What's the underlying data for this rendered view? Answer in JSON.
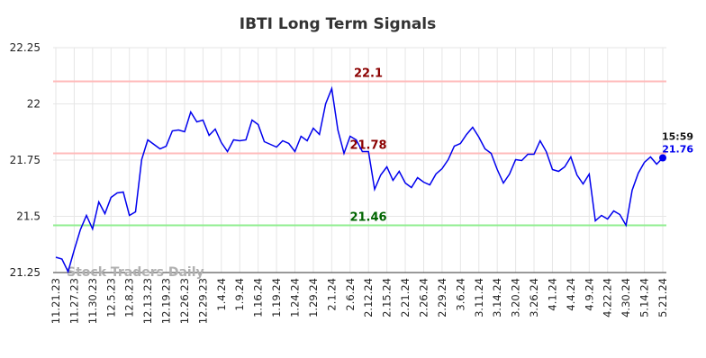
{
  "chart_data": {
    "type": "line",
    "title": "IBTI Long Term Signals",
    "watermark": "Stock Traders Daily",
    "categories": [
      "11.21.23",
      null,
      null,
      "11.27.23",
      null,
      null,
      "11.30.23",
      null,
      null,
      "12.5.23",
      null,
      null,
      "12.8.23",
      null,
      null,
      "12.13.23",
      null,
      null,
      "12.19.23",
      null,
      null,
      "12.26.23",
      null,
      null,
      "12.29.23",
      null,
      null,
      "1.4.24",
      null,
      null,
      "1.9.24",
      null,
      null,
      "1.16.24",
      null,
      null,
      "1.19.24",
      null,
      null,
      "1.24.24",
      null,
      null,
      "1.29.24",
      null,
      null,
      "2.1.24",
      null,
      null,
      "2.6.24",
      null,
      null,
      "2.12.24",
      null,
      null,
      "2.15.24",
      null,
      null,
      "2.21.24",
      null,
      null,
      "2.26.24",
      null,
      null,
      "2.29.24",
      null,
      null,
      "3.6.24",
      null,
      null,
      "3.11.24",
      null,
      null,
      "3.14.24",
      null,
      null,
      "3.20.24",
      null,
      null,
      "3.26.24",
      null,
      null,
      "4.1.24",
      null,
      null,
      "4.4.24",
      null,
      null,
      "4.9.24",
      null,
      null,
      "4.22.24",
      null,
      null,
      "4.30.24",
      null,
      null,
      "5.14.24",
      null,
      null,
      "5.21.24"
    ],
    "series": [
      {
        "name": "IBTI",
        "color": "#0000ee",
        "values": [
          21.318,
          21.31,
          21.254,
          21.35,
          21.44,
          21.504,
          21.444,
          21.564,
          21.512,
          21.584,
          21.604,
          21.608,
          21.504,
          21.52,
          21.752,
          21.84,
          21.82,
          21.8,
          21.812,
          21.88,
          21.884,
          21.876,
          21.964,
          21.92,
          21.928,
          21.86,
          21.888,
          21.828,
          21.788,
          21.84,
          21.836,
          21.84,
          21.928,
          21.908,
          21.832,
          21.82,
          21.808,
          21.836,
          21.824,
          21.788,
          21.856,
          21.836,
          21.892,
          21.864,
          22.0,
          22.068,
          21.884,
          21.78,
          21.856,
          21.84,
          21.788,
          21.788,
          21.62,
          21.684,
          21.72,
          21.66,
          21.7,
          21.648,
          21.628,
          21.672,
          21.652,
          21.64,
          21.688,
          21.712,
          21.752,
          21.812,
          21.824,
          21.864,
          21.896,
          21.852,
          21.8,
          21.78,
          21.708,
          21.648,
          21.688,
          21.752,
          21.748,
          21.776,
          21.776,
          21.836,
          21.788,
          21.708,
          21.7,
          21.72,
          21.764,
          21.684,
          21.644,
          21.688,
          21.48,
          21.504,
          21.488,
          21.524,
          21.508,
          21.46,
          21.616,
          21.692,
          21.74,
          21.764,
          21.732,
          21.76
        ]
      }
    ],
    "last_time": "15:59",
    "hlines": [
      {
        "value": 22.1,
        "color": "#ffbbbb",
        "label_color": "#8b0000"
      },
      {
        "value": 21.78,
        "color": "#ffbbbb",
        "label_color": "#8b0000"
      },
      {
        "value": 21.46,
        "color": "#90ee90",
        "label_color": "#006400"
      }
    ],
    "ylim": [
      21.25,
      22.25
    ],
    "yticks": [
      21.25,
      21.5,
      21.75,
      22,
      22.25
    ],
    "grid": true
  }
}
